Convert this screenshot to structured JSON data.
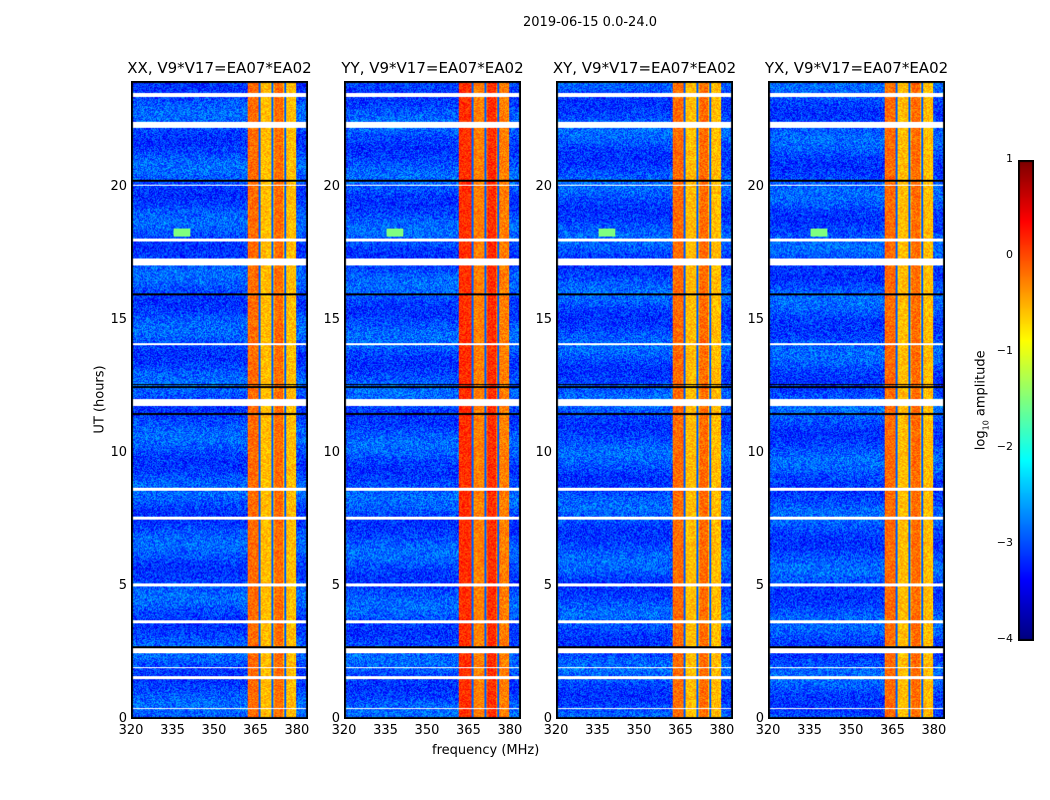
{
  "chart_data": {
    "type": "heatmap",
    "title": "2019-06-15 0.0-24.0",
    "xlabel": "frequency (MHz)",
    "ylabel": "UT (hours)",
    "xlim": [
      320,
      384
    ],
    "ylim": [
      0,
      24
    ],
    "xticks": [
      "320",
      "335",
      "350",
      "365",
      "380"
    ],
    "xtick_values": [
      320,
      335,
      350,
      365,
      380
    ],
    "yticks": [
      "0",
      "5",
      "10",
      "15",
      "20"
    ],
    "ytick_values": [
      0,
      5,
      10,
      15,
      20
    ],
    "panels": [
      {
        "title": "XX, V9*V17=EA07*EA02",
        "band_level": -0.8,
        "band_start": 362
      },
      {
        "title": "YY, V9*V17=EA07*EA02",
        "band_level": -0.5,
        "band_start": 361.5
      },
      {
        "title": "XY, V9*V17=EA07*EA02",
        "band_level": -0.8,
        "band_start": 362
      },
      {
        "title": "YX, V9*V17=EA07*EA02",
        "band_level": -0.8,
        "band_start": 362
      }
    ],
    "rfi_band_mhz": [
      362,
      380
    ],
    "background_level": -3.0,
    "notch_channels_mhz": [
      366.5,
      371,
      376
    ],
    "flagged_hours": [
      [
        23.45,
        23.6
      ],
      [
        22.3,
        22.5
      ],
      [
        17.1,
        17.35
      ],
      [
        11.8,
        12.05
      ],
      [
        2.45,
        2.65
      ],
      [
        1.5,
        1.6
      ],
      [
        1.9,
        1.95
      ],
      [
        0.35,
        0.4
      ],
      [
        20.1,
        20.15
      ],
      [
        18.0,
        18.1
      ],
      [
        14.1,
        14.15
      ],
      [
        8.6,
        8.7
      ],
      [
        7.5,
        7.6
      ],
      [
        5.0,
        5.1
      ],
      [
        3.6,
        3.7
      ]
    ],
    "dark_rows_hours": [
      20.3,
      12.5,
      12.6,
      2.7,
      11.5,
      16.0
    ],
    "colorbar": {
      "label": "log10 amplitude",
      "label_main": "log",
      "label_sub": "10",
      "label_rest": " amplitude",
      "range": [
        -4,
        1
      ],
      "ticks": [
        "1",
        "0",
        "−1",
        "−2",
        "−3",
        "−4"
      ],
      "tick_values": [
        1,
        0,
        -1,
        -2,
        -3,
        -4
      ],
      "colormap": "jet"
    }
  }
}
